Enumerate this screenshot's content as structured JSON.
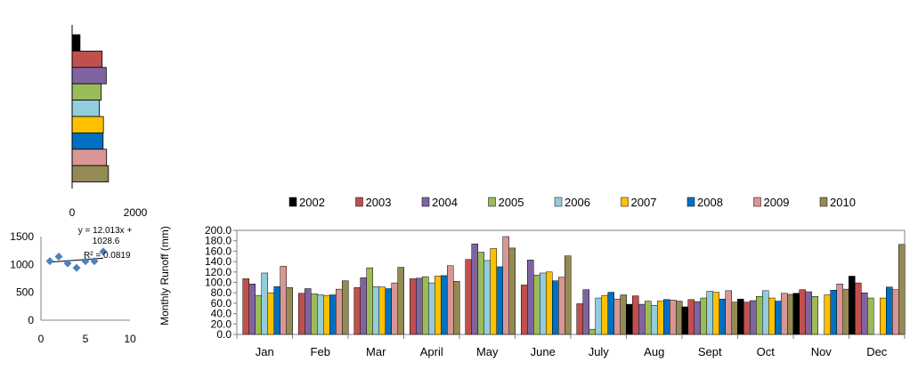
{
  "chart_data": [
    {
      "type": "bar",
      "orientation": "horizontal",
      "categories": [
        "2002",
        "2003",
        "2004",
        "2005",
        "2006",
        "2007",
        "2008",
        "2009",
        "2010"
      ],
      "values": [
        250,
        950,
        1080,
        920,
        860,
        990,
        980,
        1090,
        1150
      ],
      "colors": [
        "#000000",
        "#c0504d",
        "#8064a2",
        "#9bbb59",
        "#93cddd",
        "#ffc000",
        "#0070c0",
        "#d99694",
        "#948a54"
      ],
      "xlim": [
        0,
        2000
      ],
      "xticks": [
        "0",
        "2000"
      ],
      "title": "",
      "xlabel": "",
      "ylabel": ""
    },
    {
      "type": "scatter",
      "points": [
        [
          1,
          1060
        ],
        [
          2,
          1140
        ],
        [
          3,
          1020
        ],
        [
          4,
          940
        ],
        [
          5,
          1060
        ],
        [
          6,
          1060
        ],
        [
          7,
          1230
        ]
      ],
      "marker_color": "#4f81bd",
      "xlim": [
        0,
        10
      ],
      "ylim": [
        0,
        1500
      ],
      "xticks": [
        "0",
        "5",
        "10"
      ],
      "yticks": [
        "0",
        "500",
        "1000",
        "1500"
      ],
      "trendline": {
        "slope": 12.013,
        "intercept": 1028.6
      },
      "equation_lines": [
        "y = 12.013x +",
        "1028.6"
      ],
      "r2_label": "R² = 0.0819",
      "title": "",
      "xlabel": "",
      "ylabel": ""
    },
    {
      "type": "bar",
      "categories": [
        "Jan",
        "Feb",
        "Mar",
        "April",
        "May",
        "June",
        "July",
        "Aug",
        "Sept",
        "Oct",
        "Nov",
        "Dec"
      ],
      "series": [
        {
          "name": "2002",
          "color": "#000000",
          "values": [
            0,
            0,
            0,
            0,
            0,
            0,
            0,
            58,
            53,
            68,
            79,
            112
          ]
        },
        {
          "name": "2003",
          "color": "#c0504d",
          "values": [
            107,
            79,
            90,
            107,
            144,
            95,
            59,
            74,
            67,
            62,
            86,
            99
          ]
        },
        {
          "name": "2004",
          "color": "#8064a2",
          "values": [
            97,
            88,
            109,
            108,
            174,
            143,
            86,
            58,
            63,
            65,
            82,
            80
          ]
        },
        {
          "name": "2005",
          "color": "#9bbb59",
          "values": [
            75,
            78,
            128,
            111,
            158,
            114,
            10,
            64,
            70,
            73,
            73,
            70
          ]
        },
        {
          "name": "2006",
          "color": "#93cddd",
          "values": [
            118,
            76,
            92,
            99,
            142,
            118,
            70,
            56,
            83,
            84,
            0,
            0
          ]
        },
        {
          "name": "2007",
          "color": "#ffc000",
          "values": [
            80,
            75,
            91,
            112,
            165,
            120,
            75,
            64,
            81,
            70,
            76,
            70
          ]
        },
        {
          "name": "2008",
          "color": "#0070c0",
          "values": [
            92,
            76,
            88,
            113,
            130,
            103,
            81,
            67,
            68,
            64,
            85,
            91
          ]
        },
        {
          "name": "2009",
          "color": "#d99694",
          "values": [
            131,
            87,
            99,
            132,
            188,
            110,
            68,
            66,
            84,
            79,
            97,
            86
          ]
        },
        {
          "name": "2010",
          "color": "#948a54",
          "values": [
            90,
            103,
            129,
            102,
            166,
            151,
            76,
            64,
            62,
            77,
            87,
            173
          ]
        }
      ],
      "ylim": [
        0,
        200
      ],
      "yticks": [
        "0.0",
        "20.0",
        "40.0",
        "60.0",
        "80.0",
        "100.0",
        "120.0",
        "140.0",
        "160.0",
        "180.0",
        "200.0"
      ],
      "ylabel": "Monthly  Runoff (mm)",
      "legend": "top",
      "title": "",
      "xlabel": ""
    }
  ]
}
